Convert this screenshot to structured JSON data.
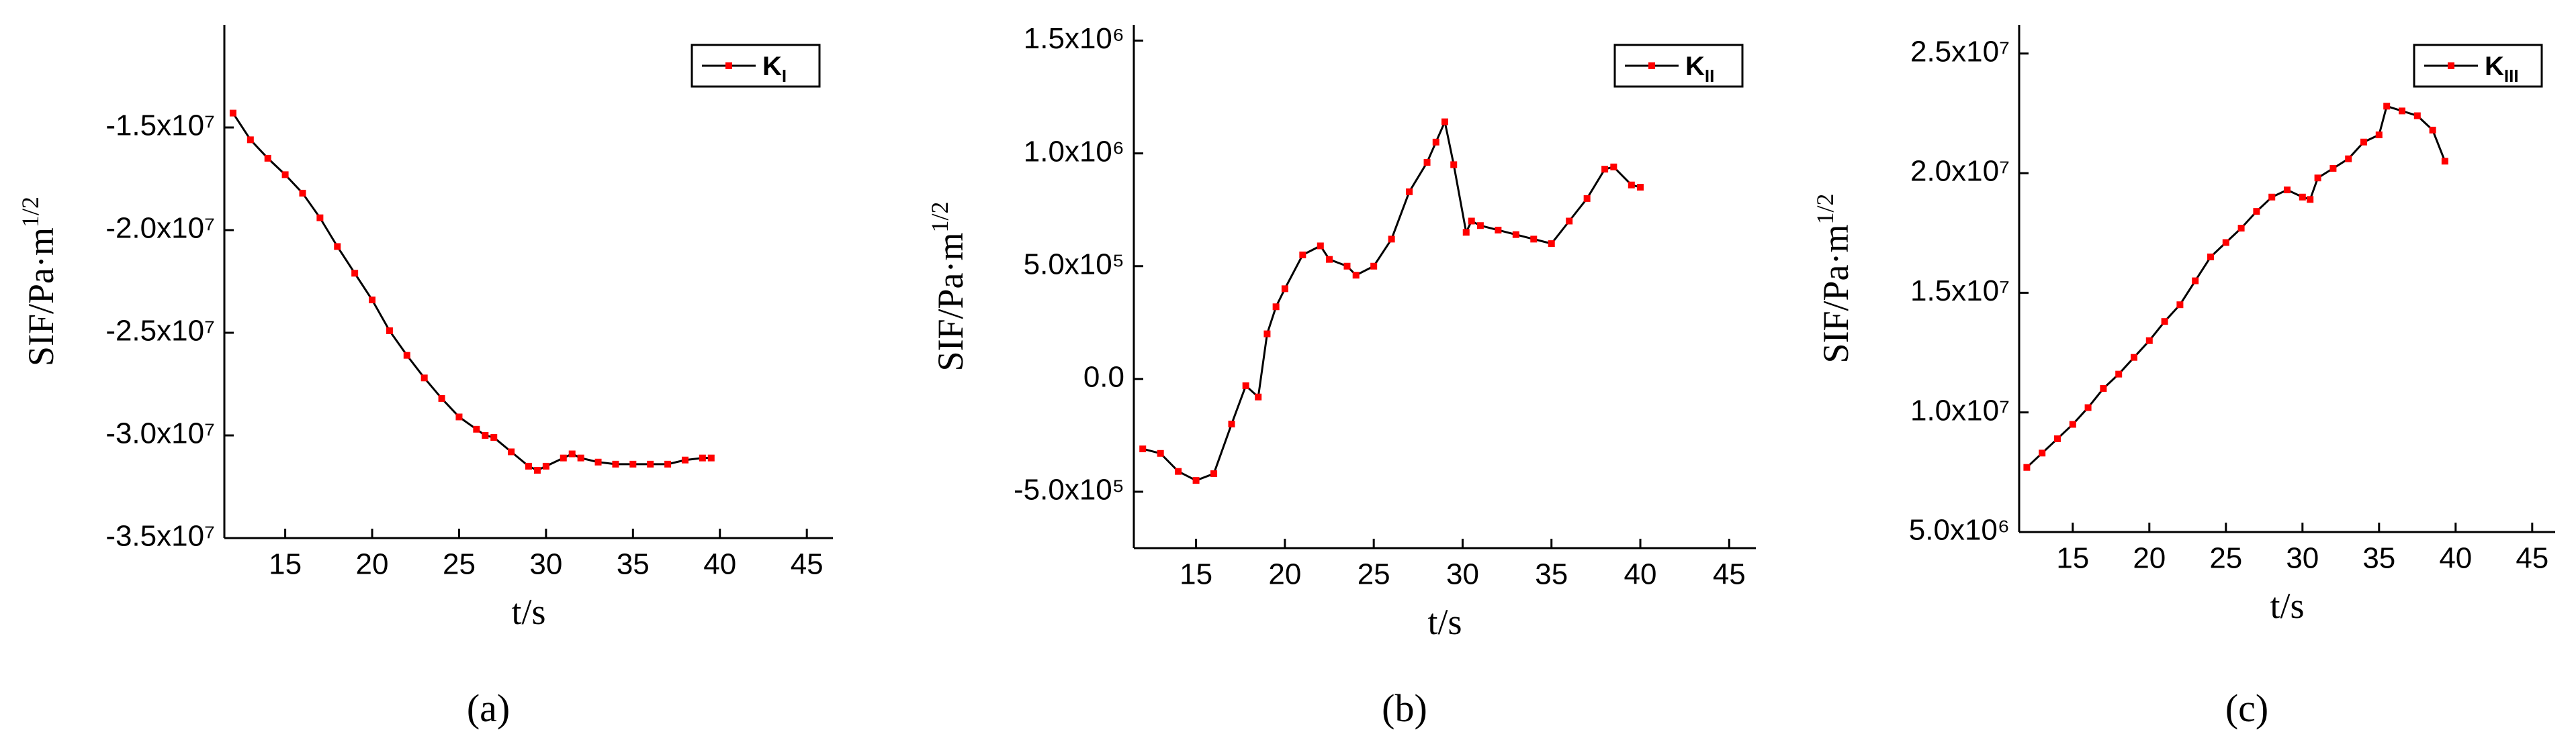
{
  "chart_data": [
    {
      "type": "line",
      "panel_label": "(a)",
      "x_label": "t/s",
      "y_label": "SIF/Pa·m",
      "y_label_sup": "1/2",
      "xlim": [
        11.5,
        46.5
      ],
      "xticks": [
        15,
        20,
        25,
        30,
        35,
        40,
        45
      ],
      "ylim": [
        -35000000,
        -10000000
      ],
      "yticks": [
        {
          "value": -15000000,
          "label": "-1.5x10⁷"
        },
        {
          "value": -20000000,
          "label": "-2.0x10⁷"
        },
        {
          "value": -25000000,
          "label": "-2.5x10⁷"
        },
        {
          "value": -30000000,
          "label": "-3.0x10⁷"
        },
        {
          "value": -35000000,
          "label": "-3.5x10⁷"
        }
      ],
      "legend": "upper right",
      "line_color": "#000000",
      "series": [
        {
          "name": "K",
          "name_sub": "I",
          "color": "#ff0000",
          "x": [
            12,
            13,
            14,
            15,
            16,
            17,
            18,
            19,
            20,
            21,
            22,
            23,
            24,
            25,
            26,
            26.5,
            27,
            28,
            29,
            29.5,
            30,
            31,
            31.5,
            32,
            33,
            34,
            35,
            36,
            37,
            38,
            39,
            39.5
          ],
          "values": [
            -14300000,
            -15600000,
            -16500000,
            -17300000,
            -18200000,
            -19400000,
            -20800000,
            -22100000,
            -23400000,
            -24900000,
            -26100000,
            -27200000,
            -28200000,
            -29100000,
            -29700000,
            -30000000,
            -30100000,
            -30800000,
            -31500000,
            -31700000,
            -31500000,
            -31100000,
            -30900000,
            -31100000,
            -31300000,
            -31400000,
            -31400000,
            -31400000,
            -31400000,
            -31200000,
            -31100000,
            -31100000
          ]
        }
      ]
    },
    {
      "type": "line",
      "panel_label": "(b)",
      "x_label": "t/s",
      "y_label": "SIF/Pa·m",
      "y_label_sup": "1/2",
      "xlim": [
        11.5,
        46.5
      ],
      "xticks": [
        15,
        20,
        25,
        30,
        35,
        40,
        45
      ],
      "ylim": [
        -750000,
        1570000
      ],
      "yticks": [
        {
          "value": 1500000,
          "label": "1.5x10⁶"
        },
        {
          "value": 1000000,
          "label": "1.0x10⁶"
        },
        {
          "value": 500000,
          "label": "5.0x10⁵"
        },
        {
          "value": 0,
          "label": "0.0"
        },
        {
          "value": -500000,
          "label": "-5.0x10⁵"
        }
      ],
      "legend": "upper right",
      "line_color": "#000000",
      "series": [
        {
          "name": "K",
          "name_sub": "II",
          "color": "#ff0000",
          "x": [
            12,
            13,
            14,
            15,
            16,
            17,
            17.8,
            18.5,
            19,
            19.5,
            20,
            21,
            22,
            22.5,
            23.5,
            24,
            25,
            26,
            27,
            28,
            28.5,
            29,
            29.5,
            30.2,
            30.5,
            31,
            32,
            33,
            34,
            35,
            36,
            37,
            38,
            38.5,
            39.5,
            40
          ],
          "values": [
            -310000,
            -330000,
            -410000,
            -450000,
            -420000,
            -200000,
            -30000,
            -80000,
            200000,
            320000,
            400000,
            550000,
            590000,
            530000,
            500000,
            460000,
            500000,
            620000,
            830000,
            960000,
            1050000,
            1140000,
            950000,
            650000,
            700000,
            680000,
            660000,
            640000,
            620000,
            600000,
            700000,
            800000,
            930000,
            940000,
            860000,
            850000
          ]
        }
      ]
    },
    {
      "type": "line",
      "panel_label": "(c)",
      "x_label": "t/s",
      "y_label": "SIF/Pa·m",
      "y_label_sup": "1/2",
      "xlim": [
        11.5,
        46.5
      ],
      "xticks": [
        15,
        20,
        25,
        30,
        35,
        40,
        45
      ],
      "ylim": [
        5000000,
        26200000
      ],
      "yticks": [
        {
          "value": 25000000,
          "label": "2.5x10⁷"
        },
        {
          "value": 20000000,
          "label": "2.0x10⁷"
        },
        {
          "value": 15000000,
          "label": "1.5x10⁷"
        },
        {
          "value": 10000000,
          "label": "1.0x10⁷"
        },
        {
          "value": 5000000,
          "label": "5.0x10⁶"
        }
      ],
      "legend": "upper right",
      "line_color": "#000000",
      "series": [
        {
          "name": "K",
          "name_sub": "III",
          "color": "#ff0000",
          "x": [
            12,
            13,
            14,
            15,
            16,
            17,
            18,
            19,
            20,
            21,
            22,
            23,
            24,
            25,
            26,
            27,
            28,
            29,
            30,
            30.5,
            31,
            32,
            33,
            34,
            35,
            35.5,
            36.5,
            37.5,
            38.5,
            39.3
          ],
          "values": [
            7700000,
            8300000,
            8900000,
            9500000,
            10200000,
            11000000,
            11600000,
            12300000,
            13000000,
            13800000,
            14500000,
            15500000,
            16500000,
            17100000,
            17700000,
            18400000,
            19000000,
            19300000,
            19000000,
            18900000,
            19800000,
            20200000,
            20600000,
            21300000,
            21600000,
            22800000,
            22600000,
            22400000,
            21800000,
            20500000
          ]
        }
      ]
    }
  ]
}
